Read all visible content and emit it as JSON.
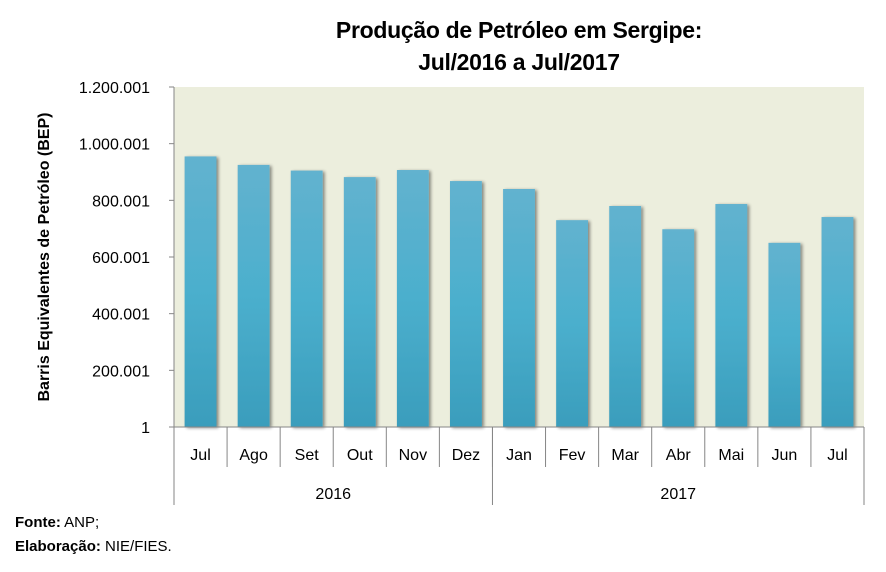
{
  "chart_data": {
    "type": "bar",
    "title": [
      "Produção de Petróleo em Sergipe:",
      "Jul/2016 a Jul/2017"
    ],
    "xlabel": "",
    "ylabel": "Barris Equivalentes de Petróleo (BEP)",
    "ylim": [
      1,
      1200001
    ],
    "yticks": [
      1,
      200001,
      400001,
      600001,
      800001,
      1000001,
      1200001
    ],
    "ytick_labels": [
      "1",
      "200.001",
      "400.001",
      "600.001",
      "800.001",
      "1.000.001",
      "1.200.001"
    ],
    "categories": [
      "Jul",
      "Ago",
      "Set",
      "Out",
      "Nov",
      "Dez",
      "Jan",
      "Fev",
      "Mar",
      "Abr",
      "Mai",
      "Jun",
      "Jul"
    ],
    "groups": [
      {
        "label": "2016",
        "count": 6
      },
      {
        "label": "2017",
        "count": 7
      }
    ],
    "series": [
      {
        "name": "Produção de Petróleo",
        "values": [
          955000,
          925000,
          905000,
          882000,
          907000,
          868000,
          840000,
          730000,
          780000,
          698000,
          787000,
          650000,
          741000
        ]
      }
    ],
    "grid": false,
    "legend": "none",
    "colors": {
      "plot_background": "#ECEEDD",
      "bar_top": "#62B2CF",
      "bar_bottom": "#3A9DBC",
      "axis": "#868686"
    }
  },
  "footer": {
    "source_label": "Fonte:",
    "source_value": "ANP;",
    "credit_label": "Elaboração:",
    "credit_value": "NIE/FIES."
  }
}
